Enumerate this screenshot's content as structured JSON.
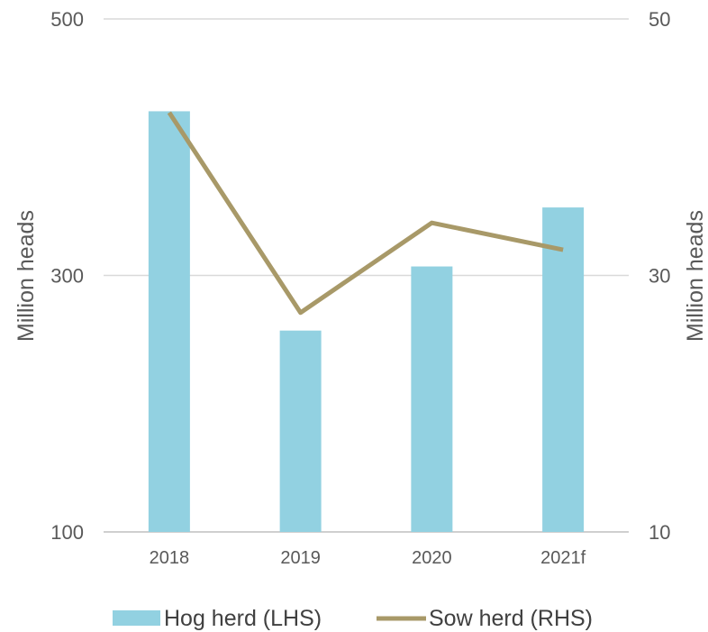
{
  "chart_data": {
    "type": "bar",
    "categories": [
      "2018",
      "2019",
      "2020",
      "2021f"
    ],
    "y_left": {
      "label": "Million heads",
      "ticks": [
        "100",
        "300",
        "500"
      ],
      "tick_values": [
        100,
        300,
        500
      ],
      "range": [
        100,
        500
      ]
    },
    "y_right": {
      "label": "Million heads",
      "ticks": [
        "10",
        "30",
        "50"
      ],
      "tick_values": [
        10,
        30,
        50
      ],
      "range": [
        10,
        50
      ]
    },
    "series": [
      {
        "name": "Hog herd (LHS)",
        "type": "bar",
        "axis": "left",
        "values": [
          428,
          257,
          307,
          353
        ],
        "color": "#92D1E1"
      },
      {
        "name": "Sow herd (RHS)",
        "type": "line",
        "axis": "right",
        "values": [
          42.7,
          27.1,
          34.1,
          32.0
        ],
        "color": "#A89968"
      }
    ],
    "grid": true,
    "legend_position": "bottom"
  }
}
